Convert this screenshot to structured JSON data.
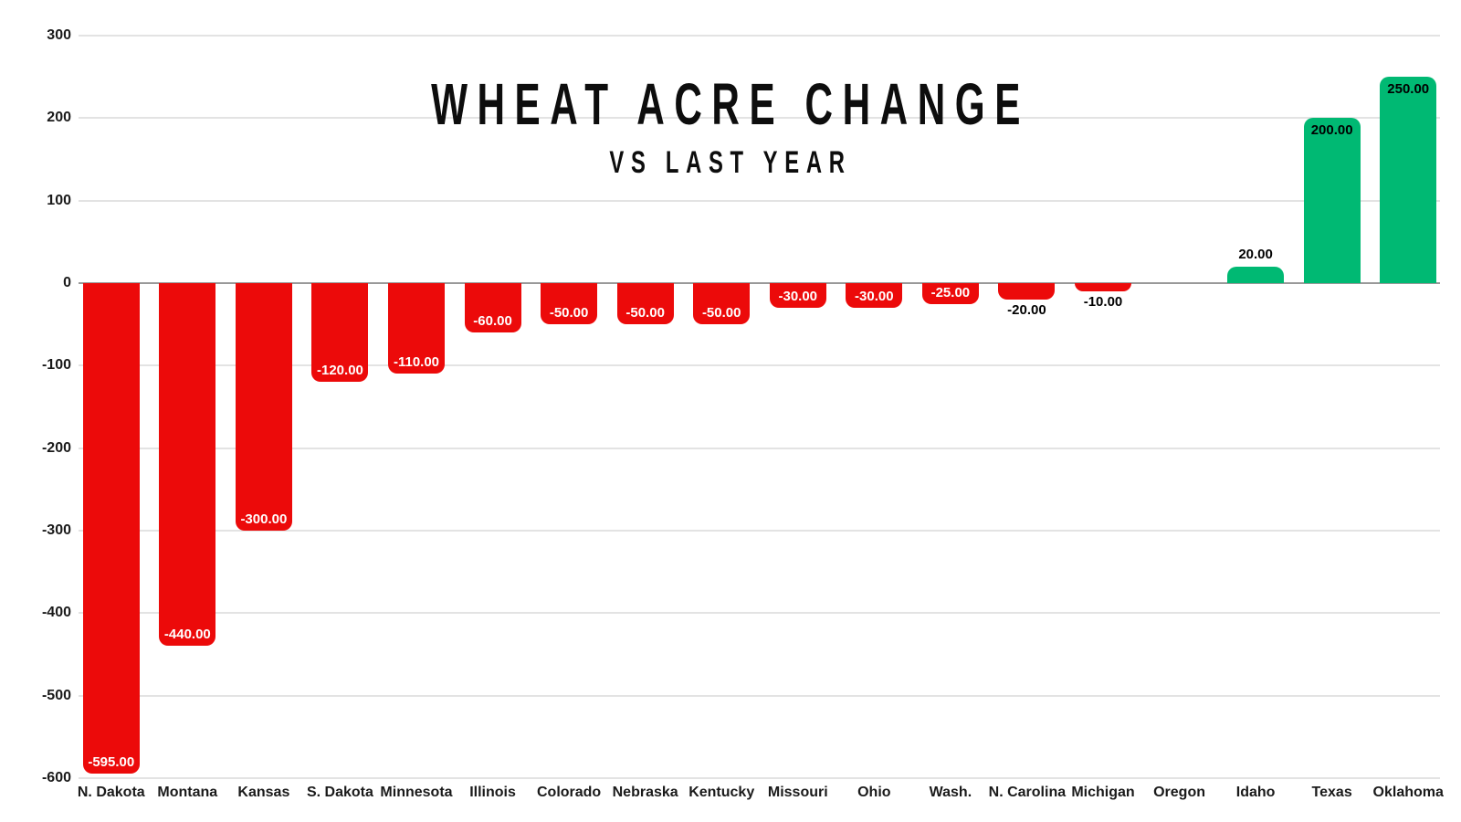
{
  "chart_data": {
    "type": "bar",
    "title": "WHEAT ACRE CHANGE",
    "subtitle": "VS LAST YEAR",
    "categories": [
      "N. Dakota",
      "Montana",
      "Kansas",
      "S. Dakota",
      "Minnesota",
      "Illinois",
      "Colorado",
      "Nebraska",
      "Kentucky",
      "Missouri",
      "Ohio",
      "Wash.",
      "N. Carolina",
      "Michigan",
      "Oregon",
      "Idaho",
      "Texas",
      "Oklahoma"
    ],
    "values": [
      -595,
      -440,
      -300,
      -120,
      -110,
      -60,
      -50,
      -50,
      -50,
      -30,
      -30,
      -25,
      -20,
      -10,
      0,
      20,
      200,
      250
    ],
    "bar_labels": [
      "-595.00",
      "-440.00",
      "-300.00",
      "-120.00",
      "-110.00",
      "-60.00",
      "-50.00",
      "-50.00",
      "-50.00",
      "-30.00",
      "-30.00",
      "-25.00",
      "-20.00",
      "-10.00",
      "",
      "20.00",
      "200.00",
      "250.00"
    ],
    "y_ticks": [
      {
        "value": 300,
        "label": "300"
      },
      {
        "value": 200,
        "label": "200"
      },
      {
        "value": 100,
        "label": "100"
      },
      {
        "value": 0,
        "label": "0"
      },
      {
        "value": -100,
        "label": "-100"
      },
      {
        "value": -200,
        "label": "-200"
      },
      {
        "value": -300,
        "label": "-300"
      },
      {
        "value": -400,
        "label": "-400"
      },
      {
        "value": -500,
        "label": "-500"
      },
      {
        "value": -600,
        "label": "-600"
      }
    ],
    "ylim": [
      -600,
      300
    ],
    "xlabel": "",
    "ylabel": "",
    "grid": true,
    "legend": "none",
    "colors": {
      "negative_bar": "#EC0A0A",
      "positive_bar": "#00B973",
      "grid_line": "#E3E3E3",
      "zero_line": "#999999",
      "label_on_negative": "#FFFFFF",
      "label_on_positive": "#000000",
      "axis_text": "#1A1A1A",
      "title_text": "#0D0D0D",
      "background": "#FFFFFF"
    }
  }
}
